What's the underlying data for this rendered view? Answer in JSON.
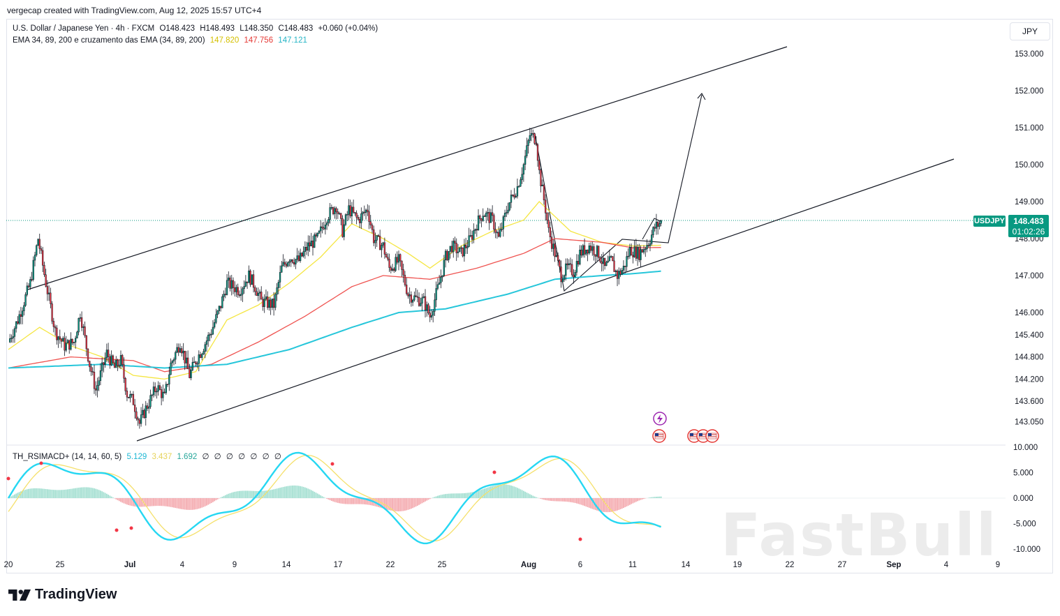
{
  "header": {
    "credit": "vergecap created with TradingView.com, Aug 12, 2025 15:57 UTC+4"
  },
  "legend": {
    "symbol": "U.S. Dollar / Japanese Yen · 4h · FXCM",
    "open": "O148.423",
    "high": "H148.493",
    "low": "L148.350",
    "close": "C148.483",
    "change": "+0.060 (+0.04%)",
    "ema_label": "EMA 34, 89, 200 e cruzamento das EMA (34, 89, 200)",
    "ema34": "147.820",
    "ema89": "147.756",
    "ema200": "147.121",
    "ema34_color": "#d4c000",
    "ema89_color": "#e53935",
    "ema200_color": "#26b5c6"
  },
  "osc_legend": {
    "label": "TH_RSIMACD+ (14, 14, 60, 5)",
    "v1": "5.129",
    "v2": "3.437",
    "v3": "1.692",
    "zeros": [
      "∅",
      "∅",
      "∅",
      "∅",
      "∅",
      "∅",
      "∅"
    ]
  },
  "price_axis": {
    "currency": "JPY",
    "current_symbol": "USDJPY",
    "current_price": "148.483",
    "countdown": "01:02:26"
  },
  "colors": {
    "up": "#089981",
    "down": "#f23645",
    "ema34": "#f5e642",
    "ema89": "#ef5350",
    "ema200": "#26c6da",
    "rsi": "#26d7f2"
  },
  "brand": {
    "name": "TradingView",
    "watermark": "FastBull"
  },
  "chart_data": {
    "type": "candlestick",
    "title": "U.S. Dollar / Japanese Yen · 4h · FXCM",
    "xlabel": "",
    "ylabel": "JPY",
    "ylim": [
      142.7,
      153.7
    ],
    "y_ticks": [
      "153.000",
      "152.000",
      "151.000",
      "150.000",
      "149.000",
      "148.000",
      "147.000",
      "146.000",
      "145.400",
      "144.800",
      "144.200",
      "143.600",
      "143.050"
    ],
    "y_tick_values": [
      153.0,
      152.0,
      151.0,
      150.0,
      149.0,
      148.0,
      147.0,
      146.0,
      145.4,
      144.8,
      144.2,
      143.6,
      143.05
    ],
    "x_ticks": [
      "20",
      "25",
      "Jul",
      "4",
      "9",
      "14",
      "17",
      "22",
      "25",
      "Aug",
      "6",
      "11",
      "14",
      "19",
      "22",
      "27",
      "Sep",
      "4",
      "9"
    ],
    "current_price": 148.483,
    "price_path": [
      [
        0,
        145.2
      ],
      [
        6,
        145.8
      ],
      [
        14,
        146.8
      ],
      [
        19,
        148.0
      ],
      [
        24,
        146.8
      ],
      [
        30,
        145.5
      ],
      [
        36,
        145.1
      ],
      [
        42,
        145.2
      ],
      [
        46,
        146.0
      ],
      [
        52,
        144.6
      ],
      [
        56,
        143.9
      ],
      [
        63,
        144.9
      ],
      [
        68,
        144.5
      ],
      [
        72,
        144.7
      ],
      [
        76,
        143.8
      ],
      [
        80,
        143.6
      ],
      [
        84,
        143.0
      ],
      [
        88,
        143.4
      ],
      [
        95,
        144.0
      ],
      [
        100,
        143.7
      ],
      [
        104,
        144.6
      ],
      [
        110,
        145.2
      ],
      [
        116,
        144.3
      ],
      [
        120,
        144.7
      ],
      [
        124,
        145.0
      ],
      [
        130,
        145.5
      ],
      [
        136,
        146.2
      ],
      [
        140,
        146.8
      ],
      [
        148,
        146.6
      ],
      [
        154,
        147.0
      ],
      [
        158,
        146.7
      ],
      [
        162,
        146.3
      ],
      [
        170,
        146.2
      ],
      [
        175,
        147.2
      ],
      [
        180,
        147.5
      ],
      [
        186,
        147.4
      ],
      [
        192,
        147.8
      ],
      [
        198,
        148.0
      ],
      [
        204,
        148.6
      ],
      [
        210,
        148.9
      ],
      [
        214,
        148.2
      ],
      [
        218,
        148.8
      ],
      [
        224,
        148.5
      ],
      [
        230,
        148.8
      ],
      [
        234,
        148.0
      ],
      [
        240,
        147.8
      ],
      [
        244,
        147.2
      ],
      [
        250,
        147.4
      ],
      [
        256,
        146.5
      ],
      [
        260,
        146.4
      ],
      [
        266,
        146.3
      ],
      [
        270,
        145.9
      ],
      [
        276,
        146.8
      ],
      [
        280,
        147.5
      ],
      [
        284,
        147.8
      ],
      [
        290,
        147.6
      ],
      [
        296,
        148.0
      ],
      [
        300,
        148.4
      ],
      [
        304,
        148.7
      ],
      [
        310,
        148.5
      ],
      [
        314,
        148.0
      ],
      [
        320,
        148.9
      ],
      [
        326,
        149.4
      ],
      [
        330,
        150.0
      ],
      [
        334,
        150.8
      ],
      [
        338,
        150.7
      ],
      [
        340,
        149.8
      ],
      [
        344,
        148.8
      ],
      [
        346,
        148.2
      ],
      [
        350,
        147.6
      ],
      [
        354,
        147.0
      ],
      [
        358,
        147.2
      ],
      [
        362,
        147.1
      ],
      [
        366,
        147.6
      ],
      [
        372,
        147.8
      ],
      [
        378,
        147.6
      ],
      [
        382,
        147.2
      ],
      [
        386,
        147.4
      ],
      [
        390,
        147.0
      ],
      [
        394,
        147.2
      ],
      [
        398,
        147.7
      ],
      [
        404,
        147.6
      ],
      [
        410,
        147.9
      ],
      [
        414,
        148.3
      ],
      [
        418,
        148.45
      ]
    ],
    "ema34_path": [
      [
        0,
        145.0
      ],
      [
        20,
        145.6
      ],
      [
        40,
        145.1
      ],
      [
        60,
        144.8
      ],
      [
        80,
        144.3
      ],
      [
        100,
        144.2
      ],
      [
        120,
        144.4
      ],
      [
        140,
        145.8
      ],
      [
        160,
        146.2
      ],
      [
        180,
        146.8
      ],
      [
        200,
        147.5
      ],
      [
        220,
        148.4
      ],
      [
        240,
        148.0
      ],
      [
        256,
        147.6
      ],
      [
        270,
        147.2
      ],
      [
        290,
        147.8
      ],
      [
        310,
        148.2
      ],
      [
        330,
        148.5
      ],
      [
        340,
        149.0
      ],
      [
        350,
        148.6
      ],
      [
        360,
        148.2
      ],
      [
        380,
        147.9
      ],
      [
        400,
        147.8
      ],
      [
        418,
        147.82
      ]
    ],
    "ema89_path": [
      [
        0,
        144.5
      ],
      [
        40,
        144.8
      ],
      [
        80,
        144.7
      ],
      [
        100,
        144.4
      ],
      [
        130,
        144.6
      ],
      [
        160,
        145.2
      ],
      [
        190,
        145.9
      ],
      [
        220,
        146.7
      ],
      [
        240,
        147.0
      ],
      [
        270,
        146.9
      ],
      [
        300,
        147.2
      ],
      [
        330,
        147.6
      ],
      [
        350,
        148.0
      ],
      [
        380,
        147.9
      ],
      [
        400,
        147.75
      ],
      [
        418,
        147.76
      ]
    ],
    "ema200_path": [
      [
        0,
        144.5
      ],
      [
        60,
        144.6
      ],
      [
        100,
        144.5
      ],
      [
        140,
        144.6
      ],
      [
        180,
        145.0
      ],
      [
        220,
        145.6
      ],
      [
        250,
        146.0
      ],
      [
        280,
        146.1
      ],
      [
        320,
        146.5
      ],
      [
        350,
        146.9
      ],
      [
        380,
        147.0
      ],
      [
        400,
        147.05
      ],
      [
        418,
        147.12
      ]
    ],
    "oscillator": {
      "ylim": [
        -10.0,
        10.0
      ],
      "y_ticks": [
        "10.000",
        "5.000",
        "0.000",
        "-5.000",
        "-10.000"
      ],
      "values": [
        5.129,
        3.437,
        1.692
      ]
    }
  }
}
